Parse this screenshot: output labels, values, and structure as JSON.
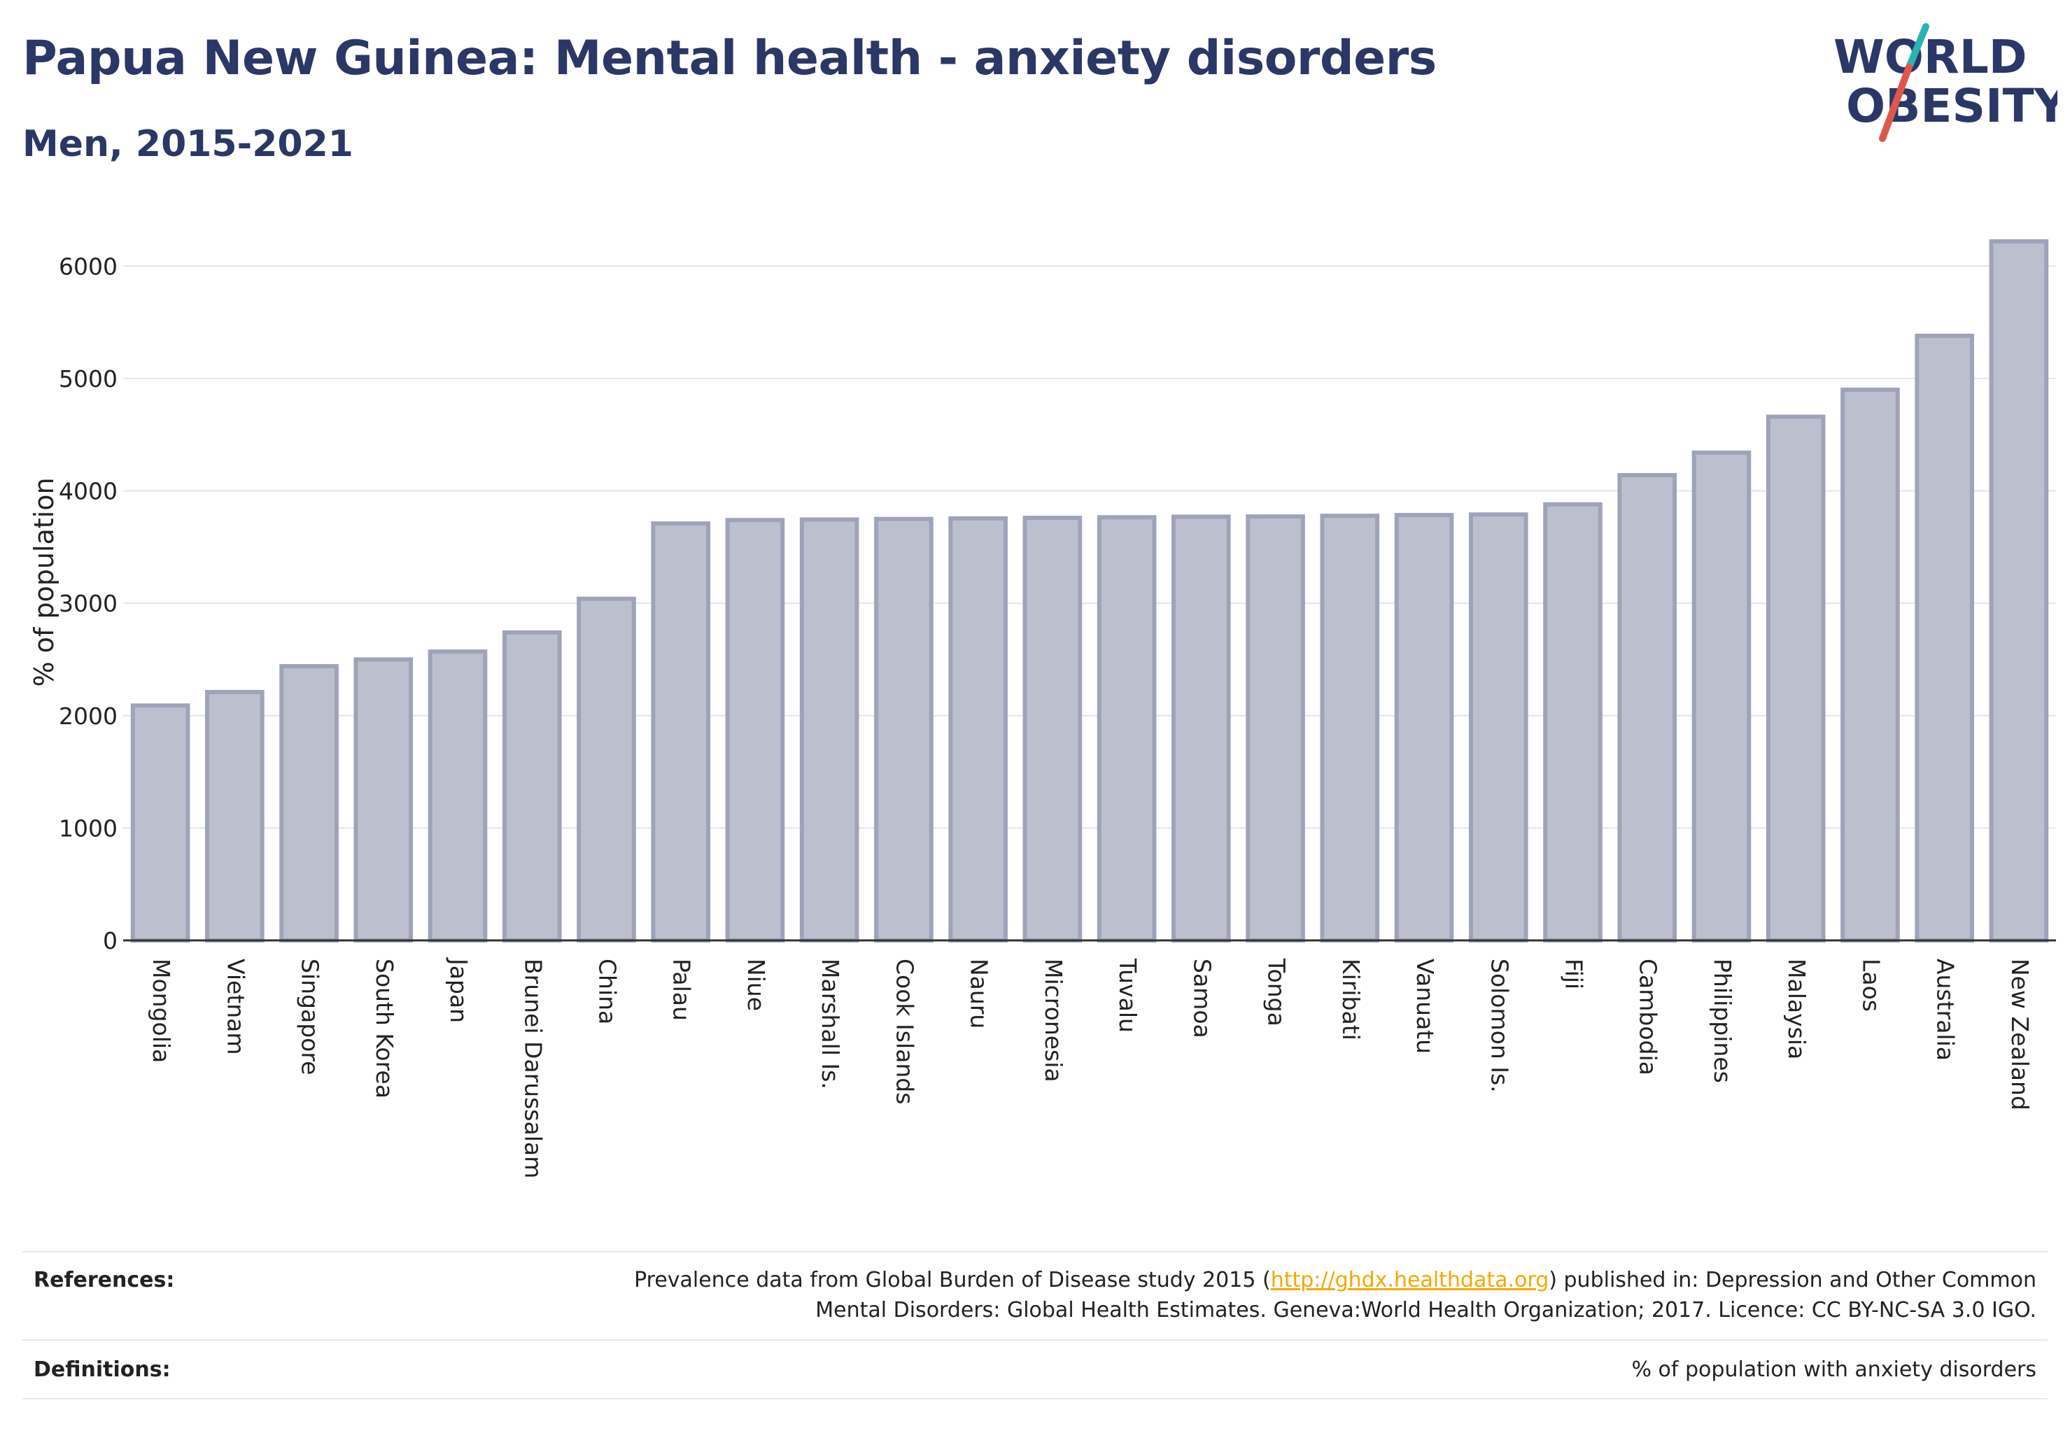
{
  "header": {
    "title": "Papua New Guinea: Mental health - anxiety disorders",
    "subtitle": "Men, 2015-2021"
  },
  "logo": {
    "line1": "WORLD",
    "line2": "OBESITY",
    "text_color": "#2b3766",
    "slash_teal": "#2ab3b1",
    "slash_red": "#e0574a"
  },
  "chart_data": {
    "type": "bar",
    "categories": [
      "Mongolia",
      "Vietnam",
      "Singapore",
      "South Korea",
      "Japan",
      "Brunei Darussalam",
      "China",
      "Palau",
      "Niue",
      "Marshall Is.",
      "Cook Islands",
      "Nauru",
      "Micronesia",
      "Tuvalu",
      "Samoa",
      "Tonga",
      "Kiribati",
      "Vanuatu",
      "Solomon Is.",
      "Fiji",
      "Cambodia",
      "Philippines",
      "Malaysia",
      "Laos",
      "Australia",
      "New Zealand"
    ],
    "values": [
      2090,
      2210,
      2440,
      2500,
      2570,
      2740,
      3040,
      3710,
      3740,
      3745,
      3750,
      3755,
      3760,
      3765,
      3770,
      3772,
      3778,
      3785,
      3790,
      3880,
      4140,
      4340,
      4660,
      4900,
      5380,
      6220
    ],
    "ylabel": "% of population",
    "xlabel": "",
    "ylim": [
      0,
      6500
    ],
    "yticks": [
      0,
      1000,
      2000,
      3000,
      4000,
      5000,
      6000
    ],
    "bar_fill": "#bcc0ce",
    "bar_stroke": "#9ea3ba",
    "grid": true
  },
  "references": {
    "label": "References:",
    "text_before_link": "Prevalence data from Global Burden of Disease study 2015 (",
    "link": "http://ghdx.healthdata.org",
    "text_after_link": ") published in: Depression and Other Common",
    "line2": "Mental Disorders: Global Health Estimates. Geneva:World Health Organization; 2017. Licence: CC BY-NC-SA 3.0 IGO."
  },
  "definitions": {
    "label": "Definitions:",
    "text": "% of population with anxiety disorders"
  }
}
